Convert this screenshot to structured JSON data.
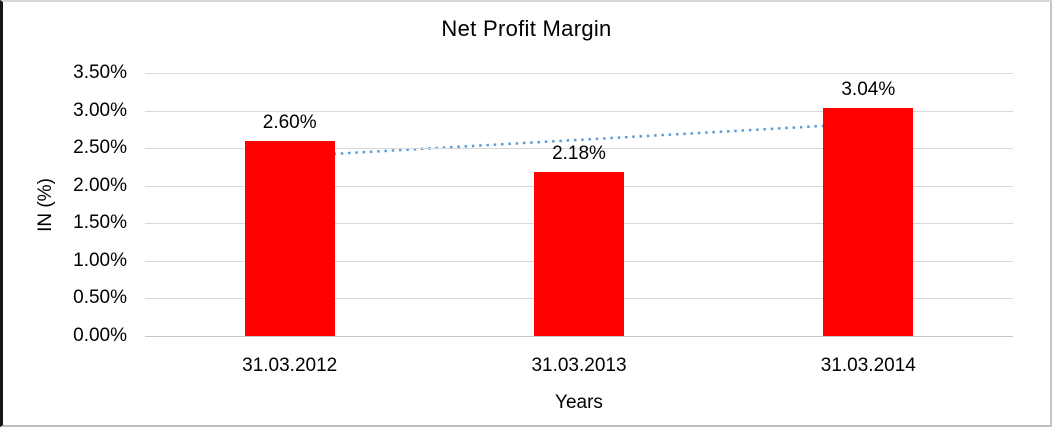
{
  "chart_data": {
    "type": "bar",
    "title": "Net Profit Margin",
    "xlabel": "Years",
    "ylabel": "IN (%)",
    "categories": [
      "31.03.2012",
      "31.03.2013",
      "31.03.2014"
    ],
    "values": [
      2.6,
      2.18,
      3.04
    ],
    "data_labels": [
      "2.60%",
      "2.18%",
      "3.04%"
    ],
    "ylim": [
      0,
      3.5
    ],
    "ytick_step": 0.5,
    "ytick_labels": [
      "0.00%",
      "0.50%",
      "1.00%",
      "1.50%",
      "2.00%",
      "2.50%",
      "3.00%",
      "3.50%"
    ],
    "grid": true,
    "legend": "none",
    "bar_color": "#ff0000",
    "trendline": {
      "kind": "linear",
      "style": "dotted",
      "color": "#5b9bd5",
      "start_value": 2.39,
      "end_value": 2.83
    }
  }
}
